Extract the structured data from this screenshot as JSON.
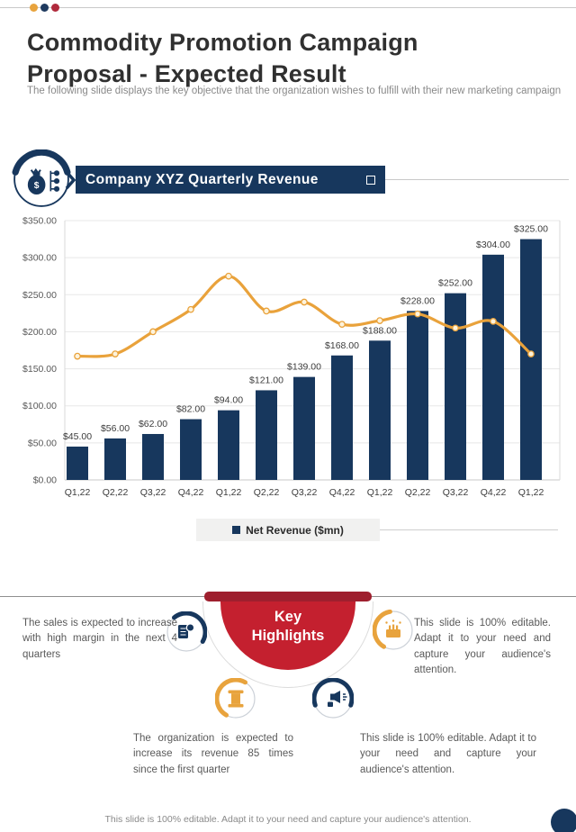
{
  "page": {
    "dots": [
      "#e8a33d",
      "#1f3a5f",
      "#b02a3c"
    ],
    "title": "Commodity Promotion Campaign Proposal - Expected Result",
    "subtitle": "The following slide displays the key objective that the organization wishes to fulfill with their new marketing campaign"
  },
  "section": {
    "title": "Company XYZ Quarterly Revenue",
    "bar_color": "#17375d"
  },
  "chart_data": {
    "type": "bar",
    "title": "Company XYZ Quarterly Revenue",
    "categories": [
      "Q1,22",
      "Q2,22",
      "Q3,22",
      "Q4,22",
      "Q1,22",
      "Q2,22",
      "Q3,22",
      "Q4,22",
      "Q1,22",
      "Q2,22",
      "Q3,22",
      "Q4,22",
      "Q1,22"
    ],
    "series": [
      {
        "name": "Net Revenue ($mn)",
        "type": "bar",
        "color": "#17375d",
        "values": [
          45,
          56,
          62,
          82,
          94,
          121,
          139,
          168,
          188,
          228,
          252,
          304,
          325
        ],
        "labels": [
          "$45.00",
          "$56.00",
          "$62.00",
          "$82.00",
          "$94.00",
          "$121.00",
          "$139.00",
          "$168.00",
          "$188.00",
          "$228.00",
          "$252.00",
          "$304.00",
          "$325.00"
        ]
      },
      {
        "name": "trend-line",
        "type": "line",
        "color": "#e9a23b",
        "marker_fill": "#fdf3dc",
        "values": [
          167,
          170,
          200,
          230,
          275,
          228,
          240,
          210,
          215,
          224,
          205,
          214,
          170
        ]
      }
    ],
    "ylim": [
      0,
      350
    ],
    "yticks": [
      "$0.00",
      "$50.00",
      "$100.00",
      "$150.00",
      "$200.00",
      "$250.00",
      "$300.00",
      "$350.00"
    ],
    "grid": true,
    "legend": {
      "label": "Net Revenue ($mn)",
      "swatch": "#17375d",
      "position": "bottom"
    }
  },
  "highlights": {
    "title": "Key Highlights",
    "topbar_color": "#9e1f2e",
    "circle_color": "#c4202f",
    "items": [
      {
        "icon": "report-icon",
        "color": "#17375d",
        "text": "The sales is expected to increase with high margin in the next 4 quarters"
      },
      {
        "icon": "celebration-icon",
        "color": "#e8a33d",
        "text": "This slide is 100% editable. Adapt it to your need and capture your audience's attention."
      },
      {
        "icon": "spool-icon",
        "color": "#e8a33d",
        "text": "The organization is expected to increase its revenue 85 times since the first quarter"
      },
      {
        "icon": "megaphone-icon",
        "color": "#17375d",
        "text": "This slide is 100% editable. Adapt it to your need and capture your audience's attention."
      }
    ]
  },
  "footer": {
    "text": "This slide is 100% editable. Adapt it to your need and capture your audience's attention."
  }
}
